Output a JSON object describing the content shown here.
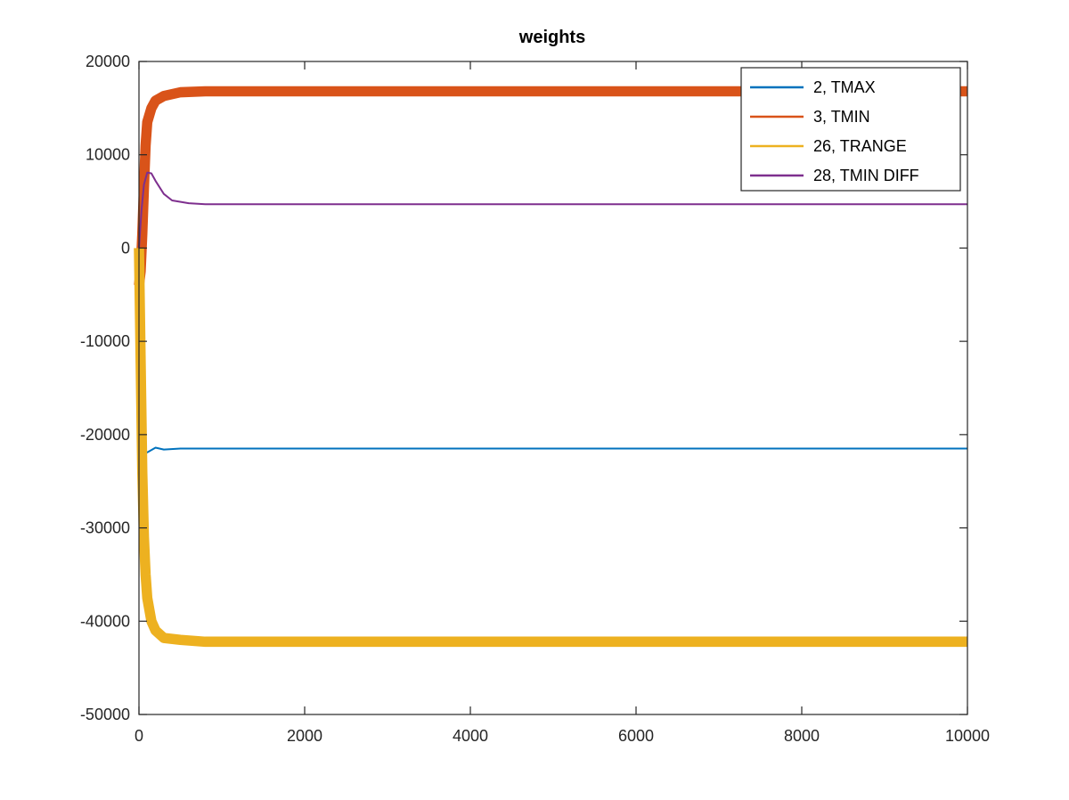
{
  "chart_data": {
    "type": "line",
    "title": "weights",
    "xlabel": "",
    "ylabel": "",
    "xlim": [
      0,
      10000
    ],
    "ylim": [
      -50000,
      20000
    ],
    "x_ticks": [
      0,
      2000,
      4000,
      6000,
      8000,
      10000
    ],
    "y_ticks": [
      -50000,
      -40000,
      -30000,
      -20000,
      -10000,
      0,
      10000,
      20000
    ],
    "grid": false,
    "legend_position": "top-right",
    "series": [
      {
        "name": "2, TMAX",
        "color": "#0072BD",
        "x": [
          0,
          20,
          40,
          60,
          80,
          120,
          200,
          300,
          500,
          1000,
          2000,
          4000,
          6000,
          8000,
          10000
        ],
        "y": [
          0,
          -11000,
          -19500,
          -21800,
          -22000,
          -21800,
          -21400,
          -21600,
          -21500,
          -21500,
          -21500,
          -21500,
          -21500,
          -21500,
          -21500
        ],
        "band": 0
      },
      {
        "name": "3, TMIN",
        "color": "#D95319",
        "x": [
          0,
          20,
          40,
          60,
          80,
          100,
          150,
          200,
          300,
          500,
          800,
          1200,
          2000,
          4000,
          6000,
          8000,
          10000
        ],
        "y": [
          -4000,
          -2500,
          1500,
          6500,
          11000,
          13500,
          15000,
          15800,
          16300,
          16700,
          16800,
          16800,
          16800,
          16800,
          16800,
          16800,
          16800
        ],
        "band": 1100
      },
      {
        "name": "26, TRANGE",
        "color": "#EDB120",
        "x": [
          0,
          20,
          40,
          60,
          80,
          100,
          150,
          200,
          300,
          500,
          800,
          1200,
          2000,
          4000,
          6000,
          8000,
          10000
        ],
        "y": [
          0,
          -12000,
          -24000,
          -31000,
          -35000,
          -37500,
          -40000,
          -41000,
          -41800,
          -42000,
          -42200,
          -42200,
          -42200,
          -42200,
          -42200,
          -42200,
          -42200
        ],
        "band": 1100
      },
      {
        "name": "28, TMIN DIFF",
        "color": "#7E2F8E",
        "x": [
          0,
          30,
          60,
          100,
          150,
          200,
          300,
          400,
          600,
          800,
          1000,
          2000,
          4000,
          6000,
          8000,
          10000
        ],
        "y": [
          0,
          4000,
          6800,
          8100,
          8000,
          7200,
          5800,
          5100,
          4800,
          4700,
          4700,
          4700,
          4700,
          4700,
          4700,
          4700
        ],
        "band": 0
      }
    ]
  }
}
